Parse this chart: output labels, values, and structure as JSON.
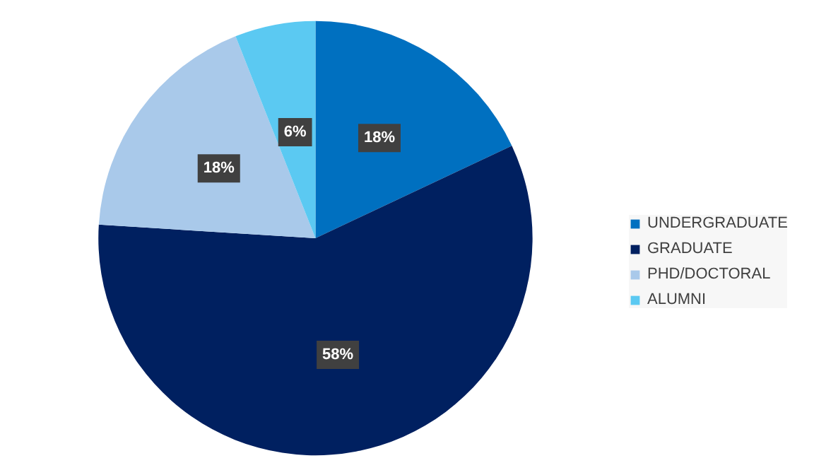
{
  "chart_data": {
    "type": "pie",
    "categories": [
      "UNDERGRADUATE",
      "GRADUATE",
      "PHD/DOCTORAL",
      "ALUMNI"
    ],
    "values": [
      18,
      58,
      18,
      6
    ],
    "colors": [
      "#0070c0",
      "#002060",
      "#a9c9ea",
      "#5bc9f2"
    ],
    "value_labels": [
      "18%",
      "58%",
      "18%",
      "6%"
    ],
    "legend": "right"
  }
}
